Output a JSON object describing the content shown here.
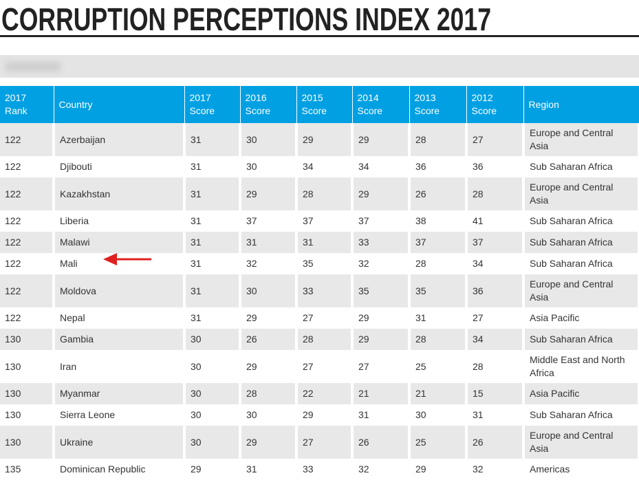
{
  "header": {
    "title": "CORRUPTION PERCEPTIONS INDEX 2017"
  },
  "table": {
    "columns": [
      "2017 Rank",
      "Country",
      "2017 Score",
      "2016 Score",
      "2015 Score",
      "2014 Score",
      "2013 Score",
      "2012 Score",
      "Region"
    ],
    "rows": [
      [
        "122",
        "Azerbaijan",
        "31",
        "30",
        "29",
        "29",
        "28",
        "27",
        "Europe and Central Asia"
      ],
      [
        "122",
        "Djibouti",
        "31",
        "30",
        "34",
        "34",
        "36",
        "36",
        "Sub Saharan Africa"
      ],
      [
        "122",
        "Kazakhstan",
        "31",
        "29",
        "28",
        "29",
        "26",
        "28",
        "Europe and Central Asia"
      ],
      [
        "122",
        "Liberia",
        "31",
        "37",
        "37",
        "37",
        "38",
        "41",
        "Sub Saharan Africa"
      ],
      [
        "122",
        "Malawi",
        "31",
        "31",
        "31",
        "33",
        "37",
        "37",
        "Sub Saharan Africa"
      ],
      [
        "122",
        "Mali",
        "31",
        "32",
        "35",
        "32",
        "28",
        "34",
        "Sub Saharan Africa"
      ],
      [
        "122",
        "Moldova",
        "31",
        "30",
        "33",
        "35",
        "35",
        "36",
        "Europe and Central Asia"
      ],
      [
        "122",
        "Nepal",
        "31",
        "29",
        "27",
        "29",
        "31",
        "27",
        "Asia Pacific"
      ],
      [
        "130",
        "Gambia",
        "30",
        "26",
        "28",
        "29",
        "28",
        "34",
        "Sub Saharan Africa"
      ],
      [
        "130",
        "Iran",
        "30",
        "29",
        "27",
        "27",
        "25",
        "28",
        "Middle East and North Africa"
      ],
      [
        "130",
        "Myanmar",
        "30",
        "28",
        "22",
        "21",
        "21",
        "15",
        "Asia Pacific"
      ],
      [
        "130",
        "Sierra Leone",
        "30",
        "30",
        "29",
        "31",
        "30",
        "31",
        "Sub Saharan Africa"
      ],
      [
        "130",
        "Ukraine",
        "30",
        "29",
        "27",
        "26",
        "25",
        "26",
        "Europe and Central Asia"
      ],
      [
        "135",
        "Dominican Republic",
        "29",
        "31",
        "33",
        "32",
        "29",
        "32",
        "Americas"
      ]
    ]
  }
}
